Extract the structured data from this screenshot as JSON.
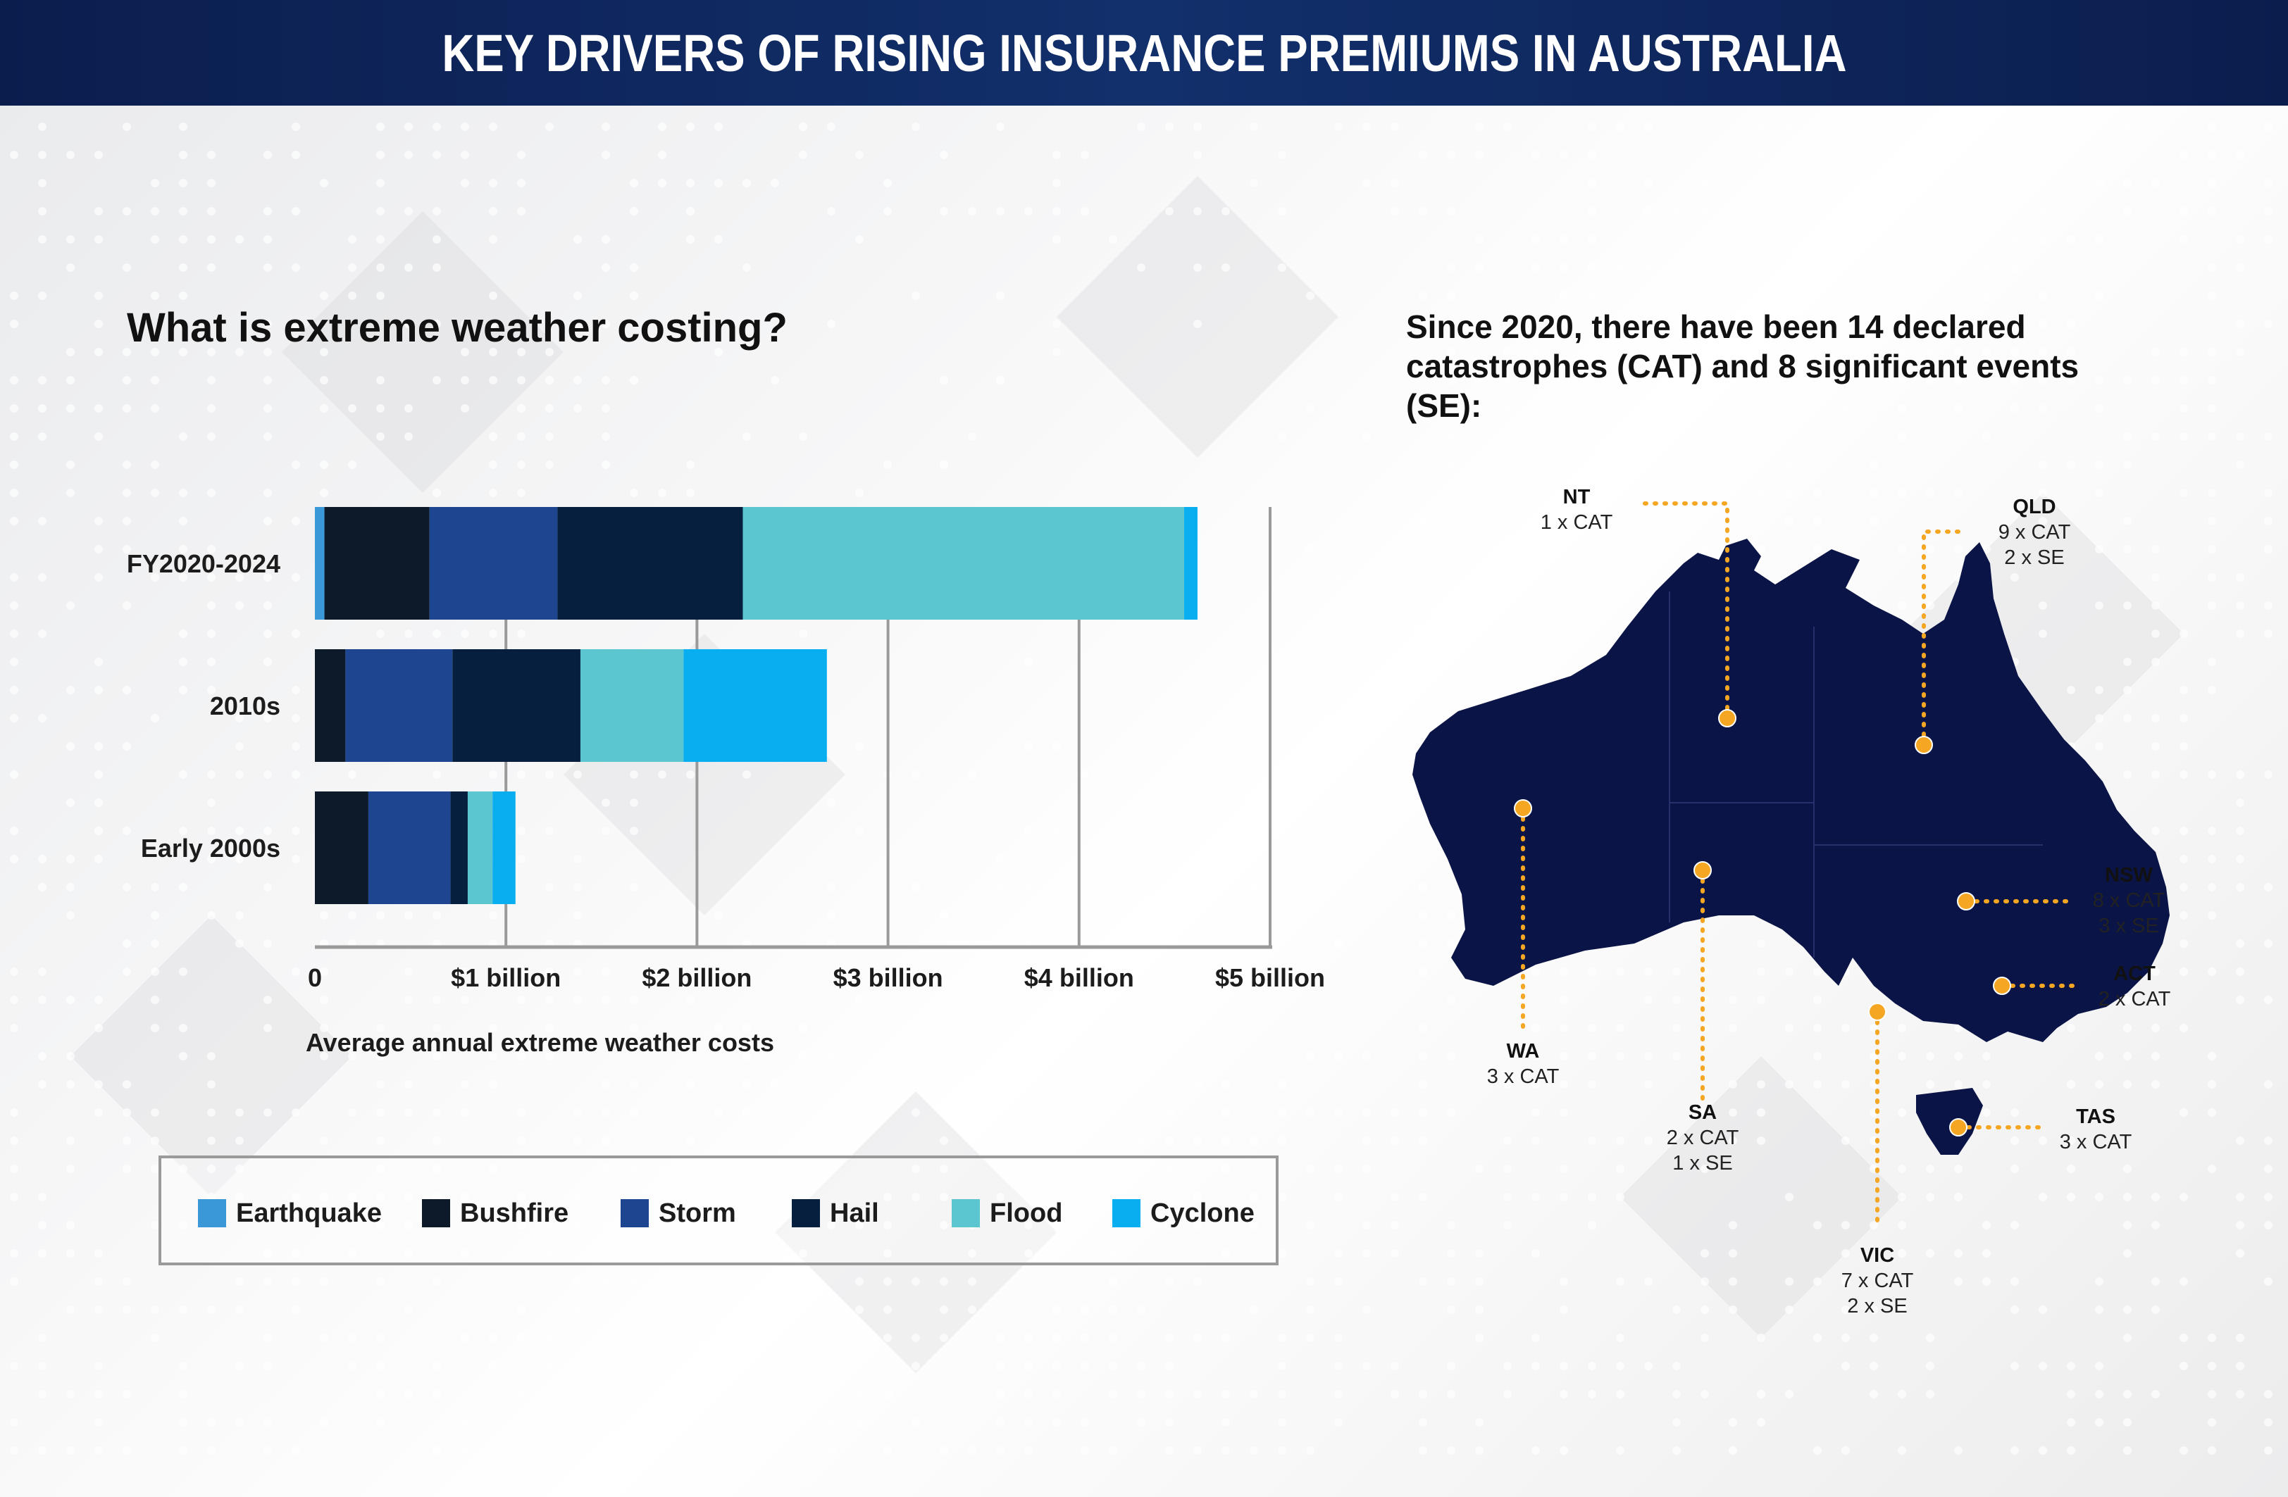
{
  "banner": {
    "title": "KEY DRIVERS OF RISING INSURANCE PREMIUMS IN AUSTRALIA"
  },
  "chart": {
    "heading": "What is extreme weather costing?"
  },
  "chart_data": {
    "type": "bar",
    "orientation": "horizontal",
    "stacked": true,
    "categories": [
      "FY2020-2024",
      "2010s",
      "Early 2000s"
    ],
    "series": [
      {
        "name": "Earthquake",
        "color": "#3a97d8",
        "values": [
          0.05,
          0.0,
          0.0
        ]
      },
      {
        "name": "Bushfire",
        "color": "#0c1a2a",
        "values": [
          0.55,
          0.16,
          0.28
        ]
      },
      {
        "name": "Storm",
        "color": "#1e4690",
        "values": [
          0.67,
          0.56,
          0.43
        ]
      },
      {
        "name": "Hail",
        "color": "#061f3f",
        "values": [
          0.97,
          0.67,
          0.09
        ]
      },
      {
        "name": "Flood",
        "color": "#5bc6cf",
        "values": [
          2.31,
          0.54,
          0.13
        ]
      },
      {
        "name": "Cyclone",
        "color": "#08aef0",
        "values": [
          0.07,
          0.75,
          0.12
        ]
      }
    ],
    "x_ticks": [
      "0",
      "$1 billion",
      "$2 billion",
      "$3 billion",
      "$4 billion",
      "$5 billion"
    ],
    "xlim": [
      0,
      5
    ],
    "xlabel": "Average annual extreme weather costs",
    "grid": true,
    "legend_position": "bottom"
  },
  "map": {
    "heading": "Since 2020, there have been 14 declared catastrophes (CAT) and 8 significant events (SE):",
    "marker_color": "#f5a623",
    "land_color": "#0b1446",
    "states": [
      {
        "id": "nt",
        "name": "NT",
        "lines": [
          "1 x CAT"
        ]
      },
      {
        "id": "qld",
        "name": "QLD",
        "lines": [
          "9 x CAT",
          "2 x SE"
        ]
      },
      {
        "id": "wa",
        "name": "WA",
        "lines": [
          "3  x CAT"
        ]
      },
      {
        "id": "sa",
        "name": "SA",
        "lines": [
          "2 x CAT",
          "1 x SE"
        ]
      },
      {
        "id": "nsw",
        "name": "NSW",
        "lines": [
          "8 x CAT",
          "3 x SE"
        ]
      },
      {
        "id": "act",
        "name": "ACT",
        "lines": [
          "2 x CAT"
        ]
      },
      {
        "id": "vic",
        "name": "VIC",
        "lines": [
          "7 x CAT",
          "2 x SE"
        ]
      },
      {
        "id": "tas",
        "name": "TAS",
        "lines": [
          "3  x CAT"
        ]
      }
    ]
  }
}
